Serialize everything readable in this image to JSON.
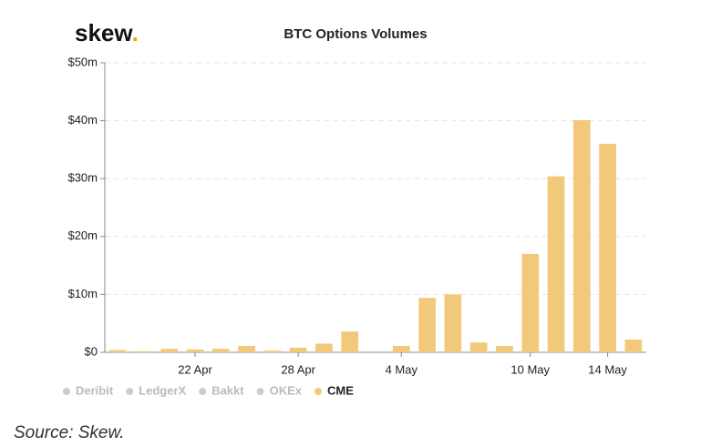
{
  "logo": {
    "text": "skew",
    "dot": "."
  },
  "chart_data": {
    "type": "bar",
    "title": "BTC Options Volumes",
    "categories": [
      null,
      null,
      null,
      "22 Apr",
      null,
      null,
      null,
      "28 Apr",
      null,
      null,
      null,
      "4 May",
      null,
      null,
      null,
      null,
      "10 May",
      null,
      null,
      "14 May",
      null
    ],
    "series": [
      {
        "name": "CME",
        "color": "#f2c97b",
        "values": [
          0.4,
          0.2,
          0.6,
          0.5,
          0.6,
          1.1,
          0.3,
          0.8,
          1.5,
          3.6,
          0,
          1.1,
          9.4,
          10,
          1.7,
          1.1,
          17,
          30.4,
          40.1,
          36,
          2.2
        ]
      }
    ],
    "legend": [
      {
        "name": "Deribit",
        "color": "#cccccc"
      },
      {
        "name": "LedgerX",
        "color": "#cccccc"
      },
      {
        "name": "Bakkt",
        "color": "#cccccc"
      },
      {
        "name": "OKEx",
        "color": "#cccccc"
      },
      {
        "name": "CME",
        "color": "#f2c97b"
      }
    ],
    "ylim": [
      0,
      50
    ],
    "yticks": [
      {
        "value": 0,
        "label": "$0"
      },
      {
        "value": 10,
        "label": "$10m"
      },
      {
        "value": 20,
        "label": "$20m"
      },
      {
        "value": 30,
        "label": "$30m"
      },
      {
        "value": 40,
        "label": "$40m"
      },
      {
        "value": 50,
        "label": "$50m"
      }
    ],
    "grid": true
  },
  "source": "Source: Skew."
}
